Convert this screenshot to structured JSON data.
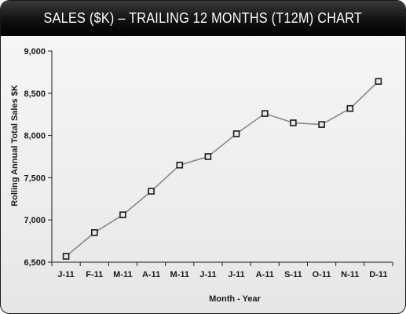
{
  "chart_data": {
    "type": "line",
    "title": "SALES ($K) – TRAILING 12 MONTHS (T12M) CHART",
    "xlabel": "Month - Year",
    "ylabel": "Rolling Annual Total Sales $K",
    "categories": [
      "J-11",
      "F-11",
      "M-11",
      "A-11",
      "M-11",
      "J-11",
      "J-11",
      "A-11",
      "S-11",
      "O-11",
      "N-11",
      "D-11"
    ],
    "series": [
      {
        "values": [
          6570,
          6850,
          7060,
          7340,
          7650,
          7750,
          8020,
          8260,
          8150,
          8130,
          8320,
          8640
        ]
      }
    ],
    "ylim": [
      6500,
      9000
    ],
    "yticks": [
      6500,
      7000,
      7500,
      8000,
      8500,
      9000
    ],
    "ytick_labels": [
      "6,500",
      "7,000",
      "7,500",
      "8,000",
      "8,500",
      "9,000"
    ],
    "grid": false,
    "legend": "none",
    "colors": {
      "line": "#888888",
      "marker_edge": "#1a1a1a",
      "marker_fill": "#e8e8e8",
      "axis": "#1a1a1a",
      "title_bar": "#111111",
      "title_text": "#ffffff"
    }
  }
}
